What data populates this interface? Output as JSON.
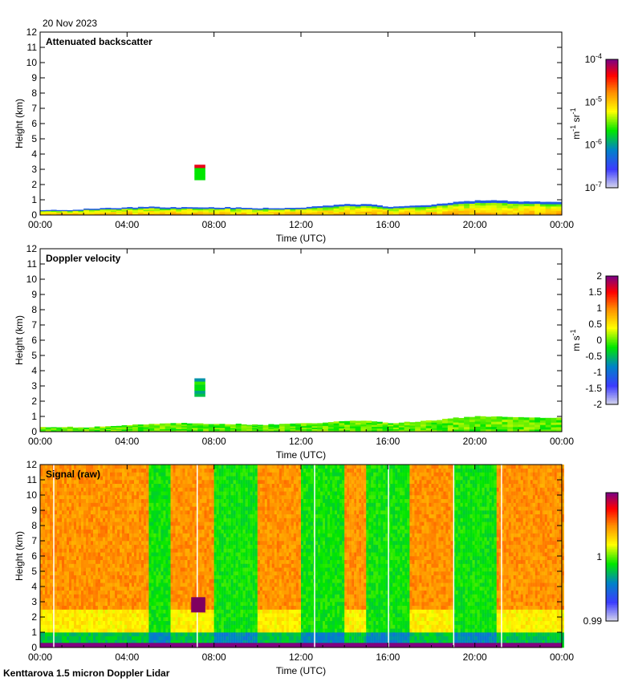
{
  "date": "20 Nov 2023",
  "footer": "Kenttarova 1.5 micron Doppler Lidar",
  "chart_data": [
    {
      "type": "heatmap",
      "title": "Attenuated backscatter",
      "xlabel": "Time (UTC)",
      "ylabel": "Height (km)",
      "xticks": [
        "00:00",
        "04:00",
        "08:00",
        "12:00",
        "16:00",
        "20:00",
        "00:00"
      ],
      "yticks": [
        "0",
        "1",
        "2",
        "3",
        "4",
        "5",
        "6",
        "7",
        "8",
        "9",
        "10",
        "11",
        "12"
      ],
      "xlim_hours": [
        0,
        24
      ],
      "ylim_km": [
        0,
        12
      ],
      "colorbar": {
        "scale": "log",
        "range": [
          1e-07,
          0.0001
        ],
        "ticks": [
          {
            "base": "10",
            "exp": "-4"
          },
          {
            "base": "10",
            "exp": "-5"
          },
          {
            "base": "10",
            "exp": "-6"
          },
          {
            "base": "10",
            "exp": "-7"
          }
        ],
        "unit": {
          "m": "m",
          "m_exp": "-1",
          "sr": "sr",
          "sr_exp": "-1"
        }
      },
      "boundary_layer_top_km": [
        0.35,
        0.3,
        0.4,
        0.45,
        0.5,
        0.55,
        0.5,
        0.5,
        0.5,
        0.5,
        0.45,
        0.45,
        0.5,
        0.6,
        0.7,
        0.7,
        0.55,
        0.6,
        0.7,
        0.85,
        0.95,
        0.95,
        0.9,
        0.85,
        0.85
      ],
      "cloud": {
        "start_h": 7.1,
        "end_h": 7.6,
        "base_km": 2.3,
        "top_km": 3.3
      }
    },
    {
      "type": "heatmap",
      "title": "Doppler velocity",
      "xlabel": "Time (UTC)",
      "ylabel": "Height (km)",
      "xticks": [
        "00:00",
        "04:00",
        "08:00",
        "12:00",
        "16:00",
        "20:00",
        "00:00"
      ],
      "yticks": [
        "0",
        "1",
        "2",
        "3",
        "4",
        "5",
        "6",
        "7",
        "8",
        "9",
        "10",
        "11",
        "12"
      ],
      "xlim_hours": [
        0,
        24
      ],
      "ylim_km": [
        0,
        12
      ],
      "colorbar": {
        "scale": "linear",
        "range": [
          -2,
          2
        ],
        "ticks": [
          "2",
          "1.5",
          "1",
          "0.5",
          "0",
          "-0.5",
          "-1",
          "-1.5",
          "-2"
        ],
        "unit": {
          "m": "m",
          "s": "s",
          "s_exp": "-1"
        }
      },
      "boundary_layer_top_km": [
        0.3,
        0.3,
        0.3,
        0.35,
        0.45,
        0.5,
        0.55,
        0.55,
        0.5,
        0.5,
        0.45,
        0.5,
        0.55,
        0.6,
        0.7,
        0.7,
        0.55,
        0.65,
        0.75,
        0.9,
        1.0,
        1.0,
        0.95,
        0.9,
        0.9
      ],
      "cloud": {
        "start_h": 7.1,
        "end_h": 7.6,
        "base_km": 2.3,
        "top_km": 3.4
      }
    },
    {
      "type": "heatmap",
      "title": "Signal (raw)",
      "xlabel": "Time (UTC)",
      "ylabel": "Height (km)",
      "xticks": [
        "00:00",
        "04:00",
        "08:00",
        "12:00",
        "16:00",
        "20:00",
        "00:00"
      ],
      "yticks": [
        "0",
        "1",
        "2",
        "3",
        "4",
        "5",
        "6",
        "7",
        "8",
        "9",
        "10",
        "11",
        "12"
      ],
      "xlim_hours": [
        0,
        24
      ],
      "ylim_km": [
        0,
        12
      ],
      "colorbar": {
        "scale": "linear",
        "range": [
          0.99,
          1.01
        ],
        "ticks": [
          "1",
          "0.99"
        ]
      },
      "bands": [
        {
          "start_h": 0,
          "end_h": 5,
          "level": "high"
        },
        {
          "start_h": 5,
          "end_h": 6,
          "level": "low"
        },
        {
          "start_h": 6,
          "end_h": 8,
          "level": "high"
        },
        {
          "start_h": 8,
          "end_h": 10,
          "level": "low"
        },
        {
          "start_h": 10,
          "end_h": 12,
          "level": "high"
        },
        {
          "start_h": 12,
          "end_h": 14,
          "level": "low"
        },
        {
          "start_h": 14,
          "end_h": 15,
          "level": "high"
        },
        {
          "start_h": 15,
          "end_h": 17,
          "level": "low"
        },
        {
          "start_h": 17,
          "end_h": 19,
          "level": "high"
        },
        {
          "start_h": 19,
          "end_h": 21,
          "level": "low"
        },
        {
          "start_h": 21,
          "end_h": 24,
          "level": "high"
        }
      ],
      "gaps_h": [
        0.6,
        7.2,
        12.6,
        16.0,
        19.0,
        21.2
      ]
    }
  ]
}
